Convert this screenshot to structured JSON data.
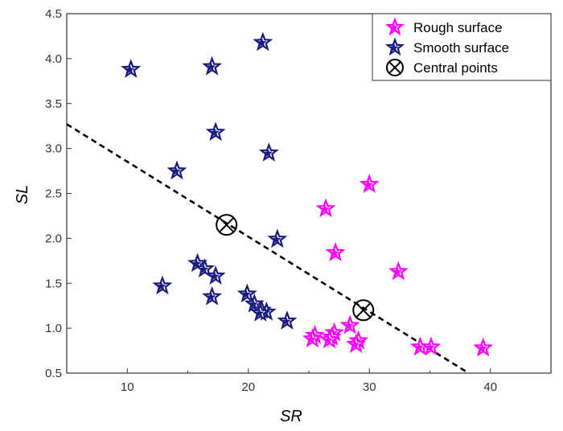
{
  "chart_data": {
    "type": "scatter",
    "xlabel": "SR",
    "ylabel": "SL",
    "xlim": [
      5,
      45
    ],
    "ylim": [
      0.5,
      4.5
    ],
    "xticks": [
      10,
      20,
      30,
      40
    ],
    "yticks": [
      0.5,
      1.0,
      1.5,
      2.0,
      2.5,
      3.0,
      3.5,
      4.0,
      4.5
    ],
    "x_tick_labels": [
      "10",
      "20",
      "30",
      "40"
    ],
    "y_tick_labels": [
      "0.5",
      "1.0",
      "1.5",
      "2.0",
      "2.5",
      "3.0",
      "3.5",
      "4.0",
      "4.5"
    ],
    "grid": false,
    "legend_position": "top-right",
    "series": [
      {
        "name": "Rough surface",
        "marker": "star",
        "color": "#ff00ff",
        "points": [
          [
            30.0,
            2.6
          ],
          [
            26.4,
            2.33
          ],
          [
            27.2,
            1.84
          ],
          [
            32.4,
            1.63
          ],
          [
            28.4,
            1.03
          ],
          [
            27.1,
            0.95
          ],
          [
            26.9,
            0.9
          ],
          [
            25.5,
            0.92
          ],
          [
            25.3,
            0.88
          ],
          [
            26.7,
            0.87
          ],
          [
            29.1,
            0.86
          ],
          [
            28.9,
            0.82
          ],
          [
            34.2,
            0.79
          ],
          [
            35.1,
            0.79
          ],
          [
            39.4,
            0.78
          ]
        ]
      },
      {
        "name": "Smooth surface",
        "marker": "star",
        "color": "#1a1a80",
        "points": [
          [
            21.2,
            4.18
          ],
          [
            10.3,
            3.88
          ],
          [
            17.0,
            3.91
          ],
          [
            17.3,
            3.18
          ],
          [
            21.7,
            2.95
          ],
          [
            14.1,
            2.75
          ],
          [
            22.4,
            1.99
          ],
          [
            15.8,
            1.72
          ],
          [
            16.4,
            1.66
          ],
          [
            17.3,
            1.58
          ],
          [
            12.9,
            1.47
          ],
          [
            19.9,
            1.38
          ],
          [
            17.0,
            1.35
          ],
          [
            20.5,
            1.27
          ],
          [
            21.1,
            1.2
          ],
          [
            21.5,
            1.18
          ],
          [
            21.0,
            1.17
          ],
          [
            23.2,
            1.08
          ]
        ]
      },
      {
        "name": "Central points",
        "marker": "circle-x",
        "color": "#000000",
        "points": [
          [
            18.2,
            2.15
          ],
          [
            29.5,
            1.2
          ]
        ]
      }
    ],
    "trend_line": {
      "style": "dashed",
      "color": "#000000",
      "points": [
        [
          5,
          3.27
        ],
        [
          38.2,
          0.5
        ]
      ]
    }
  }
}
